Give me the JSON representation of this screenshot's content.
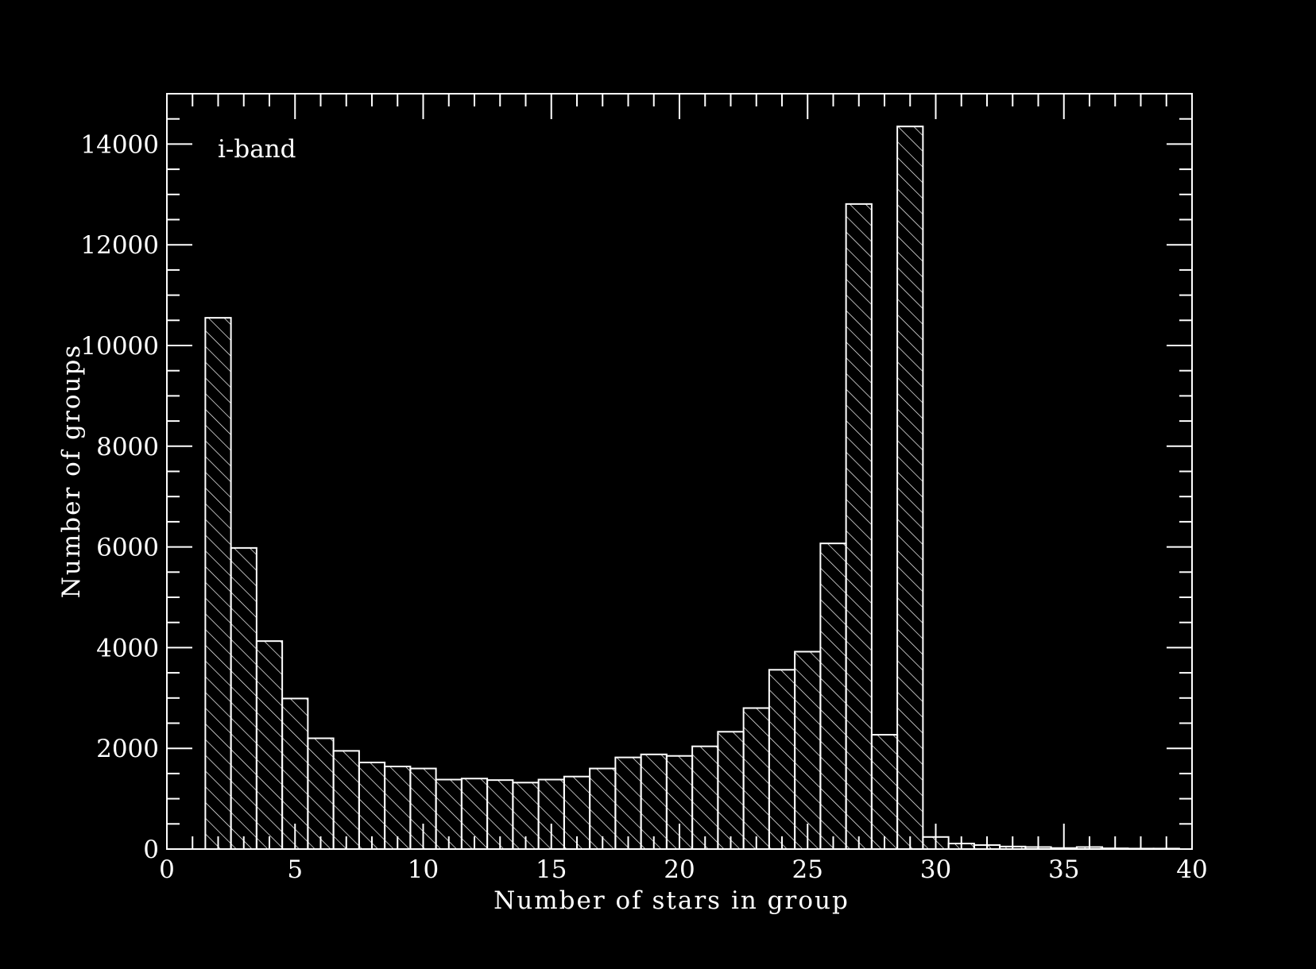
{
  "chart_data": {
    "type": "bar",
    "title": "",
    "xlabel": "Number of stars in group",
    "ylabel": "Number of groups",
    "annotation": "i-band",
    "xlim": [
      0,
      40
    ],
    "ylim": [
      0,
      15000
    ],
    "xticks": [
      "0",
      "5",
      "10",
      "15",
      "20",
      "25",
      "30",
      "35",
      "40"
    ],
    "yticks": [
      "0",
      "2000",
      "4000",
      "6000",
      "8000",
      "10000",
      "12000",
      "14000"
    ],
    "bin_width": 1,
    "bins": [
      {
        "x": 2,
        "value": 10550
      },
      {
        "x": 3,
        "value": 5980
      },
      {
        "x": 4,
        "value": 4130
      },
      {
        "x": 5,
        "value": 2990
      },
      {
        "x": 6,
        "value": 2200
      },
      {
        "x": 7,
        "value": 1950
      },
      {
        "x": 8,
        "value": 1720
      },
      {
        "x": 9,
        "value": 1640
      },
      {
        "x": 10,
        "value": 1600
      },
      {
        "x": 11,
        "value": 1380
      },
      {
        "x": 12,
        "value": 1400
      },
      {
        "x": 13,
        "value": 1370
      },
      {
        "x": 14,
        "value": 1320
      },
      {
        "x": 15,
        "value": 1380
      },
      {
        "x": 16,
        "value": 1440
      },
      {
        "x": 17,
        "value": 1600
      },
      {
        "x": 18,
        "value": 1820
      },
      {
        "x": 19,
        "value": 1880
      },
      {
        "x": 20,
        "value": 1850
      },
      {
        "x": 21,
        "value": 2040
      },
      {
        "x": 22,
        "value": 2330
      },
      {
        "x": 23,
        "value": 2800
      },
      {
        "x": 24,
        "value": 3560
      },
      {
        "x": 25,
        "value": 3920
      },
      {
        "x": 26,
        "value": 6070
      },
      {
        "x": 27,
        "value": 12810
      },
      {
        "x": 28,
        "value": 2270
      },
      {
        "x": 29,
        "value": 14350
      },
      {
        "x": 30,
        "value": 240
      },
      {
        "x": 31,
        "value": 110
      },
      {
        "x": 32,
        "value": 80
      },
      {
        "x": 33,
        "value": 50
      },
      {
        "x": 34,
        "value": 40
      },
      {
        "x": 35,
        "value": 20
      },
      {
        "x": 36,
        "value": 40
      },
      {
        "x": 37,
        "value": 15
      },
      {
        "x": 38,
        "value": 10
      },
      {
        "x": 39,
        "value": 10
      }
    ],
    "hatched_bins": [
      2,
      29
    ],
    "grid": false,
    "legend": "none",
    "colors": {
      "background": "#000000",
      "foreground": "#ffffff"
    }
  }
}
